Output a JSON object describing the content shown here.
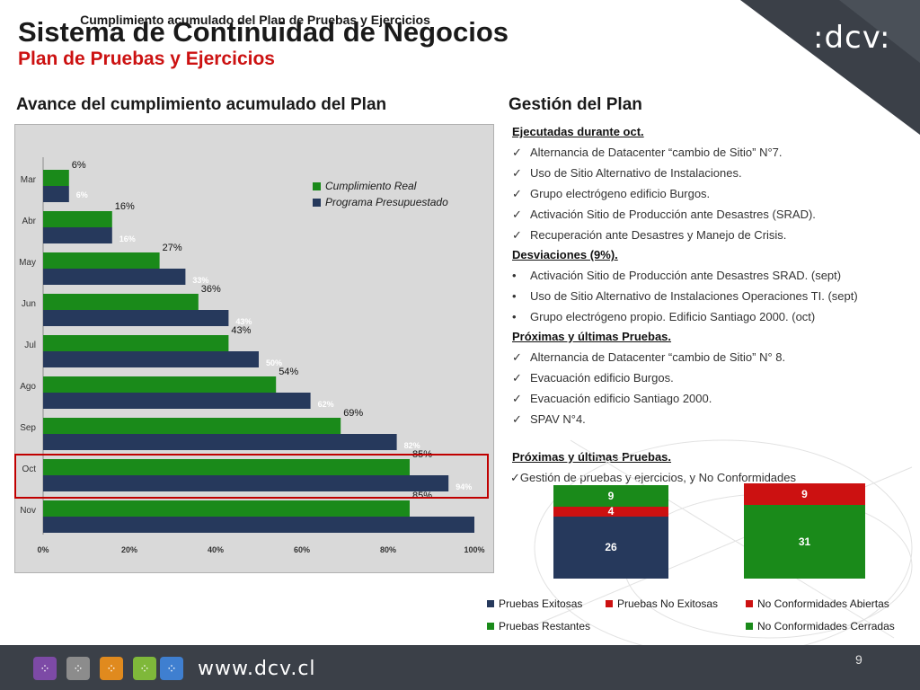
{
  "logo": ":dcv:",
  "title": "Sistema de Continuidad de Negocios",
  "subtitle": "Plan de Pruebas y Ejercicios",
  "left_heading": "Avance del cumplimiento acumulado del Plan",
  "right_heading": "Gestión del Plan",
  "colors": {
    "green": "#1a8a1a",
    "navy": "#26395c",
    "red": "#cc1111",
    "dark": "#3b4048"
  },
  "chart_data": [
    {
      "type": "bar",
      "orientation": "horizontal",
      "title": "Cumplimiento acumulado del Plan de Pruebas y Ejercicios",
      "categories": [
        "Mar",
        "Abr",
        "May",
        "Jun",
        "Jul",
        "Ago",
        "Sep",
        "Oct",
        "Nov"
      ],
      "series": [
        {
          "name": "Cumplimiento Real",
          "color": "#1a8a1a",
          "values": [
            6,
            16,
            27,
            36,
            43,
            54,
            69,
            85,
            85
          ]
        },
        {
          "name": "Programa Presupuestado",
          "color": "#26395c",
          "values": [
            6,
            16,
            33,
            43,
            50,
            62,
            82,
            94,
            100
          ]
        }
      ],
      "data_labels": {
        "real": [
          "6%",
          "16%",
          "27%",
          "36%",
          "43%",
          "54%",
          "69%",
          "85%",
          "85%"
        ],
        "budget": [
          "6%",
          "16%",
          "33%",
          "43%",
          "50%",
          "62%",
          "82%",
          "94%",
          ""
        ]
      },
      "x_ticks": [
        "0%",
        "20%",
        "40%",
        "60%",
        "80%",
        "100%"
      ],
      "xlim": [
        0,
        100
      ],
      "legend_position": "top-right",
      "highlighted_category": "Oct"
    },
    {
      "type": "bar",
      "stacked": true,
      "bars": [
        {
          "segments": [
            {
              "name": "Pruebas Exitosas",
              "value": 26,
              "color": "#26395c"
            },
            {
              "name": "Pruebas No Exitosas",
              "value": 4,
              "color": "#cc1111"
            },
            {
              "name": "Pruebas Restantes",
              "value": 9,
              "color": "#1a8a1a"
            }
          ]
        },
        {
          "segments": [
            {
              "name": "No Conformidades Cerradas",
              "value": 31,
              "color": "#1a8a1a"
            },
            {
              "name": "No Conformidades Abiertas",
              "value": 9,
              "color": "#cc1111"
            }
          ]
        }
      ],
      "legend": [
        "Pruebas Exitosas",
        "Pruebas No Exitosas",
        "No Conformidades Abiertas",
        "Pruebas Restantes",
        "No Conformidades Cerradas"
      ],
      "legend_position": "bottom"
    }
  ],
  "plan": {
    "executed_heading": "Ejecutadas durante oct.",
    "executed": [
      "Alternancia de Datacenter “cambio de Sitio” N°7.",
      "Uso de Sitio Alternativo de Instalaciones.",
      "Grupo electrógeno edificio Burgos.",
      "Activación Sitio de Producción ante Desastres (SRAD).",
      "Recuperación ante Desastres y Manejo de Crisis."
    ],
    "deviations_heading": "Desviaciones (9%).",
    "deviations": [
      "Activación Sitio de Producción ante Desastres SRAD. (sept)",
      "Uso de Sitio Alternativo de Instalaciones Operaciones TI. (sept)",
      "Grupo electrógeno propio.  Edificio Santiago 2000. (oct)"
    ],
    "next_heading": "Próximas y últimas Pruebas.",
    "next": [
      "Alternancia de Datacenter “cambio de Sitio” N° 8.",
      " Evacuación edificio  Burgos.",
      " Evacuación edificio  Santiago 2000.",
      "SPAV N°4."
    ],
    "next2_heading": "Próximas y últimas Pruebas.",
    "next2": [
      "Gestión de  pruebas y ejercicios, y No Conformidades"
    ]
  },
  "footer": {
    "url": "www.dcv.cl",
    "page": "9"
  }
}
